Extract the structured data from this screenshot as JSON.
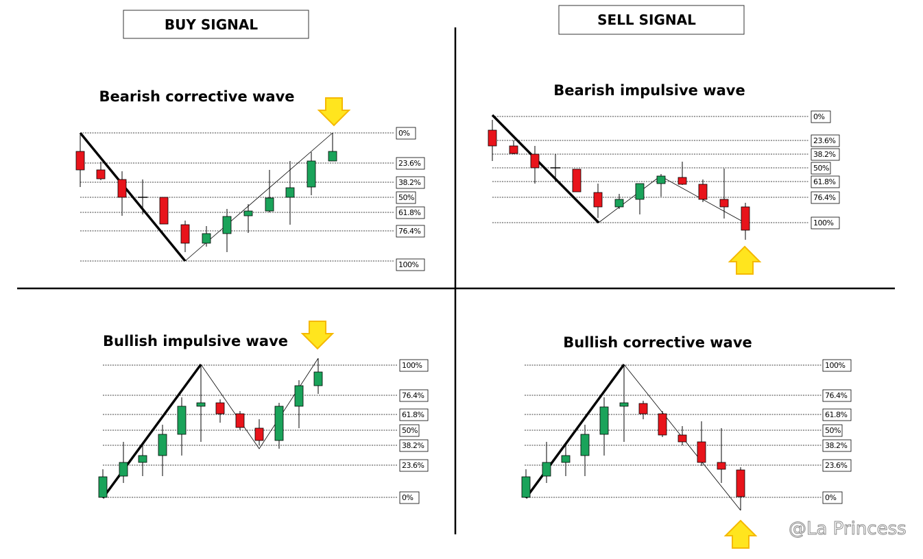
{
  "headers": {
    "buy": "BUY SIGNAL",
    "sell": "SELL SIGNAL"
  },
  "panels": [
    {
      "title": "Bearish corrective wave",
      "levels": [
        "0%",
        "23.6%",
        "38.2%",
        "50%",
        "61.8%",
        "76.4%",
        "100%"
      ]
    },
    {
      "title": "Bearish impulsive wave",
      "levels": [
        "0%",
        "23.6%",
        "38.2%",
        "50%",
        "61.8%",
        "76.4%",
        "100%"
      ]
    },
    {
      "title": "Bullish impulsive wave",
      "levels": [
        "100%",
        "76.4%",
        "61.8%",
        "50%",
        "38.2%",
        "23.6%",
        "0%"
      ]
    },
    {
      "title": "Bullish corrective wave",
      "levels": [
        "100%",
        "76.4%",
        "61.8%",
        "50%",
        "38.2%",
        "23.6%",
        "0%"
      ]
    }
  ],
  "watermark": "@La Princess"
}
